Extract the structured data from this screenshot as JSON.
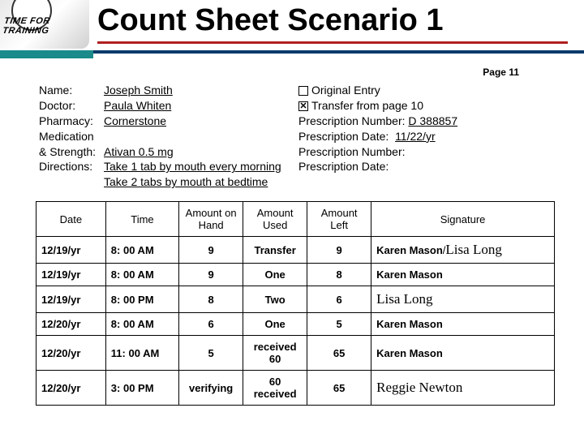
{
  "logo": {
    "text": "TIME FOR",
    "text2": "TRAINING"
  },
  "title": "Count Sheet Scenario 1",
  "page_label": "Page 11",
  "info": {
    "labels": {
      "name": "Name:",
      "doctor": "Doctor:",
      "pharmacy": "Pharmacy:",
      "med1": "Medication",
      "med2": "& Strength:",
      "directions": "Directions:"
    },
    "name": "Joseph Smith",
    "doctor": "Paula Whiten",
    "pharmacy": "Cornerstone",
    "med": "Ativan 0.5 mg",
    "dir1": "Take 1 tab by mouth every morning",
    "dir2": "Take 2 tabs by mouth at bedtime",
    "right": {
      "original": "Original Entry",
      "transfer": "Transfer  from page 10",
      "rx_num_lbl": "Prescription Number:",
      "rx_num": "D 388857",
      "rx_date_lbl": "Prescription Date:",
      "rx_date": "11/22/yr",
      "rx_num2_lbl": "Prescription Number:",
      "rx_date2_lbl": "Prescription Date:"
    }
  },
  "table": {
    "headers": {
      "date": "Date",
      "time": "Time",
      "on_hand": "Amount on Hand",
      "used": "Amount Used",
      "left": "Amount Left",
      "sig": "Signature"
    },
    "rows": [
      {
        "date": "12/19/yr",
        "time": "8: 00 AM",
        "on_hand": "9",
        "used": "Transfer",
        "left": "9",
        "sig1": "Karen Mason",
        "sig_sep": "/",
        "sig2": "Lisa Long"
      },
      {
        "date": "12/19/yr",
        "time": "8: 00 AM",
        "on_hand": "9",
        "used": "One",
        "left": "8",
        "sig1": "Karen Mason",
        "sig2": ""
      },
      {
        "date": "12/19/yr",
        "time": "8: 00 PM",
        "on_hand": "8",
        "used": "Two",
        "left": "6",
        "sig1": "",
        "sig2": "Lisa Long"
      },
      {
        "date": "12/20/yr",
        "time": "8: 00 AM",
        "on_hand": "6",
        "used": "One",
        "left": "5",
        "sig1": "Karen Mason",
        "sig2": ""
      },
      {
        "date": "12/20/yr",
        "time": "11: 00 AM",
        "on_hand": "5",
        "used": "received 60",
        "left": "65",
        "sig1": "Karen Mason",
        "sig2": ""
      },
      {
        "date": "12/20/yr",
        "time": "3: 00 PM",
        "on_hand": "verifying",
        "used": "60 received",
        "left": "65",
        "sig1": "",
        "sig2": "Reggie Newton"
      }
    ]
  },
  "colors": {
    "underline": "#b02020",
    "teal": "#1a8a8a",
    "navy": "#0a3a6a"
  }
}
